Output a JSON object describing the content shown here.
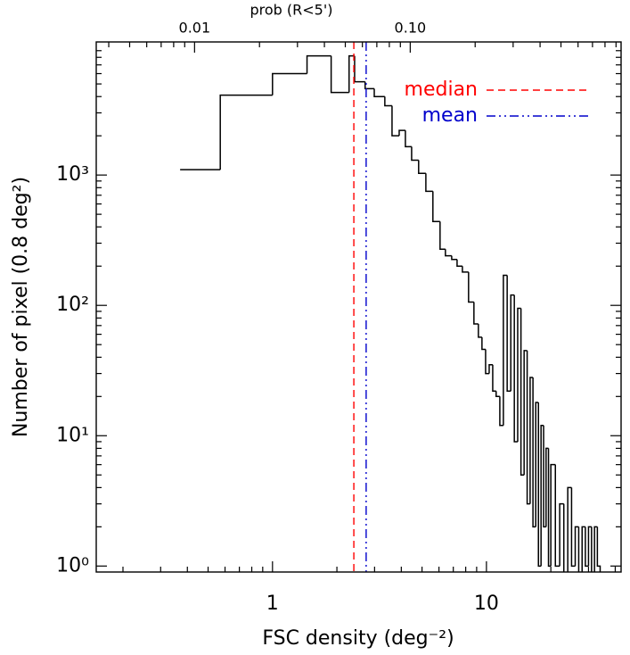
{
  "chart_data": {
    "type": "histogram",
    "xlabel": "FSC density (deg⁻²)",
    "ylabel": "Number of pixel (0.8 deg²)",
    "x2label": "prob (R<5')",
    "xscale": "log",
    "yscale": "log",
    "x2scale": "log",
    "xlim": [
      0.15,
      42.6
    ],
    "ylim": [
      0.9,
      10500
    ],
    "x2lim": [
      0.0035,
      0.95
    ],
    "xticks": [
      1,
      10
    ],
    "yticks": [
      {
        "value": 1,
        "label": "10⁰"
      },
      {
        "value": 10,
        "label": "10¹"
      },
      {
        "value": 100,
        "label": "10²"
      },
      {
        "value": 1000,
        "label": "10³"
      }
    ],
    "x2ticks": [
      0.01,
      {
        "value": 0.1,
        "label": "0.10"
      }
    ],
    "color": "#000000",
    "bins": [
      0.37,
      0.57,
      1.0,
      1.45,
      1.88,
      2.28,
      2.42,
      2.71,
      2.99,
      3.35,
      3.62,
      3.91,
      4.18,
      4.47,
      4.82,
      5.21,
      5.62,
      6.07,
      6.43,
      6.88,
      7.29,
      7.72,
      8.25,
      8.74,
      9.17,
      9.53,
      9.91,
      10.3,
      10.7,
      11.1,
      11.55,
      12.0,
      12.5,
      13.0,
      13.5,
      14.0,
      14.5,
      15.0,
      15.5,
      16.0,
      16.5,
      17.0,
      17.5,
      18.0,
      18.5,
      19.0,
      19.5,
      20,
      21,
      22,
      23,
      24,
      25,
      26,
      27,
      28,
      29,
      30,
      31,
      32,
      33,
      34
    ],
    "counts": [
      1100,
      4100,
      6000,
      8200,
      4300,
      8200,
      5200,
      4600,
      4000,
      3400,
      2000,
      2200,
      1650,
      1300,
      1030,
      750,
      440,
      270,
      240,
      225,
      200,
      180,
      106,
      72,
      57,
      46,
      30,
      35,
      22,
      20,
      12,
      170,
      22,
      120,
      9,
      95,
      5,
      45,
      3,
      28,
      2,
      18,
      1,
      12,
      2,
      8,
      1,
      6,
      1,
      3,
      0,
      4,
      1,
      2,
      0,
      2,
      1,
      2,
      0,
      2,
      1
    ],
    "lines": [
      {
        "name": "median",
        "x": 2.4,
        "color": "#ff0000",
        "dash": "dashed"
      },
      {
        "name": "mean",
        "x": 2.74,
        "color": "#0000cc",
        "dash": "dash-dot-dot"
      }
    ]
  }
}
